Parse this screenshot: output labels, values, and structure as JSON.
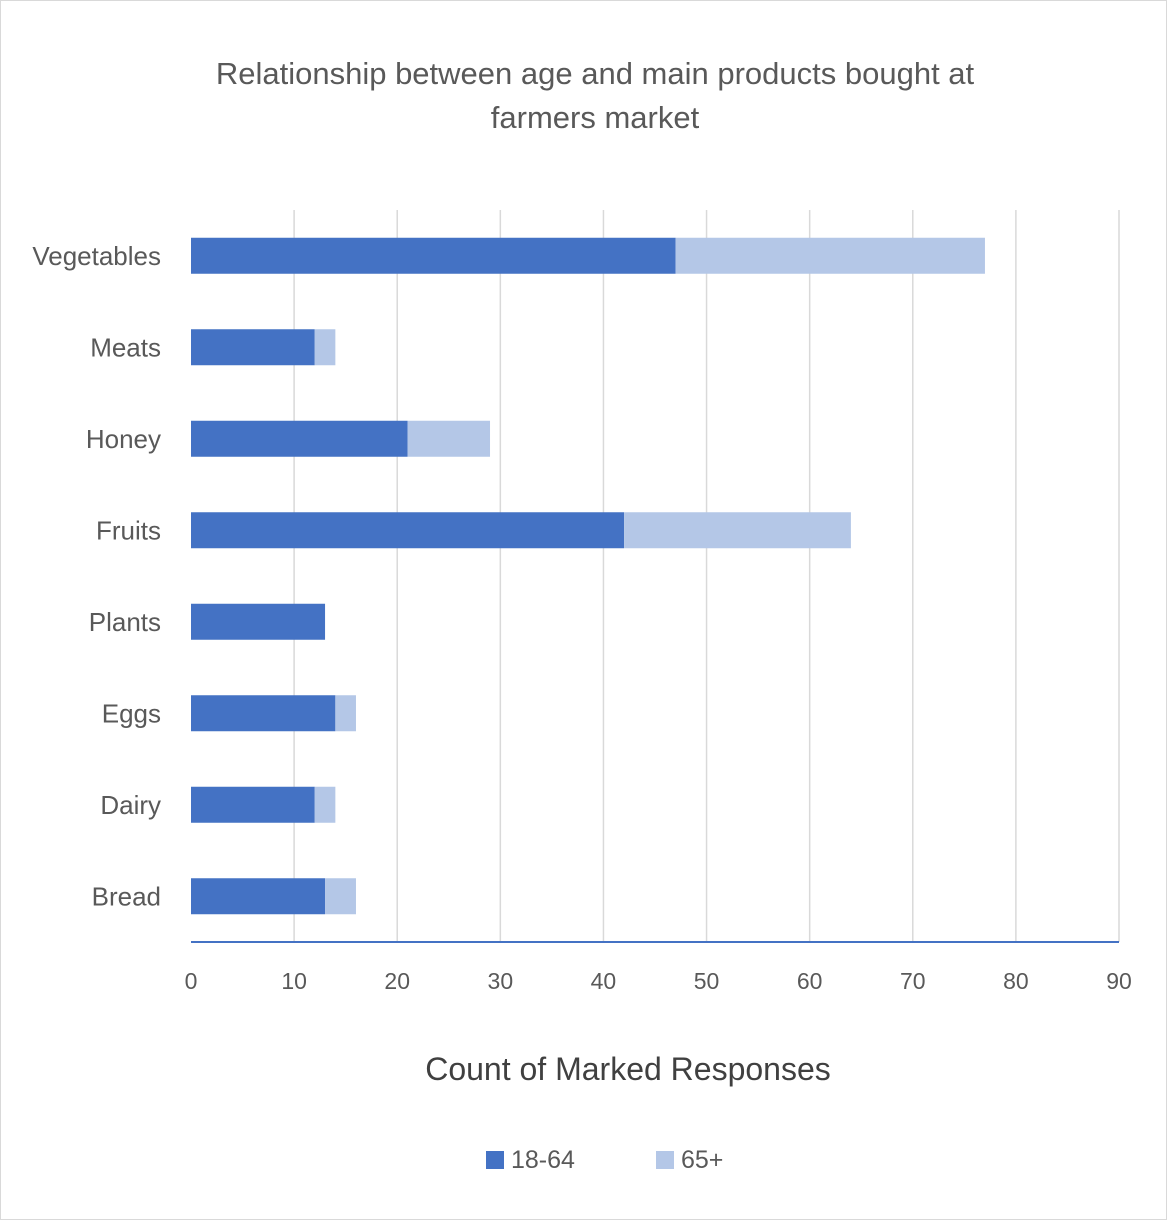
{
  "chart_data": {
    "type": "bar",
    "orientation": "horizontal",
    "stacked": true,
    "title": "Relationship between age and main products bought at farmers market",
    "title_lines": [
      "Relationship between age and main products bought at",
      "farmers market"
    ],
    "xlabel": "Count of Marked Responses",
    "ylabel": "",
    "categories": [
      "Vegetables",
      "Meats",
      "Honey",
      "Fruits",
      "Plants",
      "Eggs",
      "Dairy",
      "Bread"
    ],
    "series": [
      {
        "name": "18-64",
        "color": "#4472c4",
        "values": [
          47,
          12,
          21,
          42,
          13,
          14,
          12,
          13
        ]
      },
      {
        "name": "65+",
        "color": "#b4c7e7",
        "values": [
          30,
          2,
          8,
          22,
          0,
          2,
          2,
          3
        ]
      }
    ],
    "xlim": [
      0,
      90
    ],
    "xticks": [
      0,
      10,
      20,
      30,
      40,
      50,
      60,
      70,
      80,
      90
    ],
    "grid": true,
    "legend_position": "bottom"
  }
}
